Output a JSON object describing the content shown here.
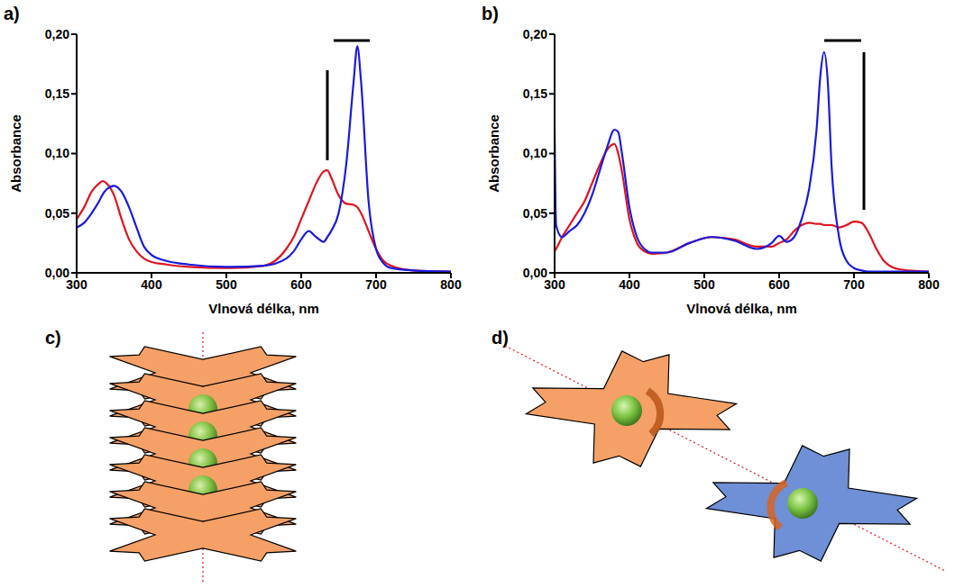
{
  "chart_data": [
    {
      "type": "line",
      "panel_label": "a)",
      "xlabel": "Vlnová délka, nm",
      "ylabel": "Absorbance",
      "x": [
        300,
        310,
        320,
        330,
        335,
        340,
        350,
        360,
        370,
        380,
        390,
        400,
        420,
        450,
        500,
        550,
        580,
        590,
        600,
        610,
        620,
        630,
        635,
        640,
        650,
        660,
        670,
        675,
        680,
        690,
        700,
        710,
        720,
        750,
        800
      ],
      "series": [
        {
          "color": "#1a1adf",
          "values": [
            0.038,
            0.042,
            0.05,
            0.06,
            0.066,
            0.07,
            0.073,
            0.068,
            0.055,
            0.038,
            0.022,
            0.015,
            0.01,
            0.007,
            0.005,
            0.006,
            0.012,
            0.018,
            0.028,
            0.035,
            0.03,
            0.026,
            0.03,
            0.035,
            0.05,
            0.09,
            0.16,
            0.19,
            0.16,
            0.06,
            0.02,
            0.008,
            0.004,
            0.002,
            0.001
          ]
        },
        {
          "color": "#e0141e",
          "values": [
            0.045,
            0.055,
            0.068,
            0.075,
            0.077,
            0.075,
            0.065,
            0.045,
            0.028,
            0.018,
            0.012,
            0.009,
            0.007,
            0.005,
            0.004,
            0.006,
            0.02,
            0.03,
            0.045,
            0.06,
            0.075,
            0.085,
            0.086,
            0.08,
            0.065,
            0.058,
            0.057,
            0.055,
            0.05,
            0.035,
            0.02,
            0.01,
            0.006,
            0.002,
            0.001
          ]
        }
      ],
      "xlim": [
        300,
        800
      ],
      "xticks": [
        300,
        400,
        500,
        600,
        700,
        800
      ],
      "ylim": [
        0,
        0.2
      ],
      "yticks": [
        {
          "value": 0,
          "label": "0,00"
        },
        {
          "value": 0.05,
          "label": "0,05"
        },
        {
          "value": 0.1,
          "label": "0,10"
        },
        {
          "value": 0.15,
          "label": "0,15"
        },
        {
          "value": 0.2,
          "label": "0,20"
        }
      ],
      "grid": false
    },
    {
      "type": "line",
      "panel_label": "b)",
      "xlabel": "Vlnová délka, nm",
      "ylabel": "Absorbance",
      "x": [
        300,
        302,
        310,
        320,
        330,
        340,
        350,
        360,
        370,
        380,
        385,
        390,
        400,
        410,
        420,
        430,
        450,
        480,
        510,
        540,
        570,
        590,
        600,
        610,
        620,
        630,
        640,
        650,
        655,
        660,
        665,
        670,
        680,
        690,
        700,
        710,
        720,
        730,
        740,
        760,
        800
      ],
      "series": [
        {
          "color": "#1a1adf",
          "values": [
            0.12,
            0.04,
            0.03,
            0.035,
            0.04,
            0.05,
            0.065,
            0.085,
            0.105,
            0.12,
            0.118,
            0.1,
            0.055,
            0.03,
            0.02,
            0.017,
            0.017,
            0.025,
            0.03,
            0.027,
            0.02,
            0.025,
            0.031,
            0.026,
            0.03,
            0.045,
            0.07,
            0.12,
            0.165,
            0.185,
            0.16,
            0.09,
            0.03,
            0.01,
            0.004,
            0.002,
            0.001,
            0.001,
            0.001,
            0.001,
            0.001
          ]
        },
        {
          "color": "#e0141e",
          "values": [
            0.018,
            0.02,
            0.03,
            0.04,
            0.05,
            0.06,
            0.075,
            0.09,
            0.103,
            0.108,
            0.1,
            0.085,
            0.045,
            0.025,
            0.018,
            0.016,
            0.017,
            0.025,
            0.03,
            0.028,
            0.022,
            0.022,
            0.025,
            0.028,
            0.035,
            0.04,
            0.042,
            0.041,
            0.041,
            0.04,
            0.04,
            0.04,
            0.038,
            0.04,
            0.043,
            0.042,
            0.033,
            0.02,
            0.01,
            0.003,
            0.001
          ]
        }
      ],
      "xlim": [
        300,
        800
      ],
      "xticks": [
        300,
        400,
        500,
        600,
        700,
        800
      ],
      "ylim": [
        0,
        0.2
      ],
      "yticks": [
        {
          "value": 0,
          "label": "0,00"
        },
        {
          "value": 0.05,
          "label": "0,05"
        },
        {
          "value": 0.1,
          "label": "0,10"
        },
        {
          "value": 0.15,
          "label": "0,15"
        },
        {
          "value": 0.2,
          "label": "0,20"
        }
      ],
      "grid": false
    }
  ],
  "diagrams": [
    {
      "panel_label": "c)"
    },
    {
      "panel_label": "d)"
    }
  ]
}
